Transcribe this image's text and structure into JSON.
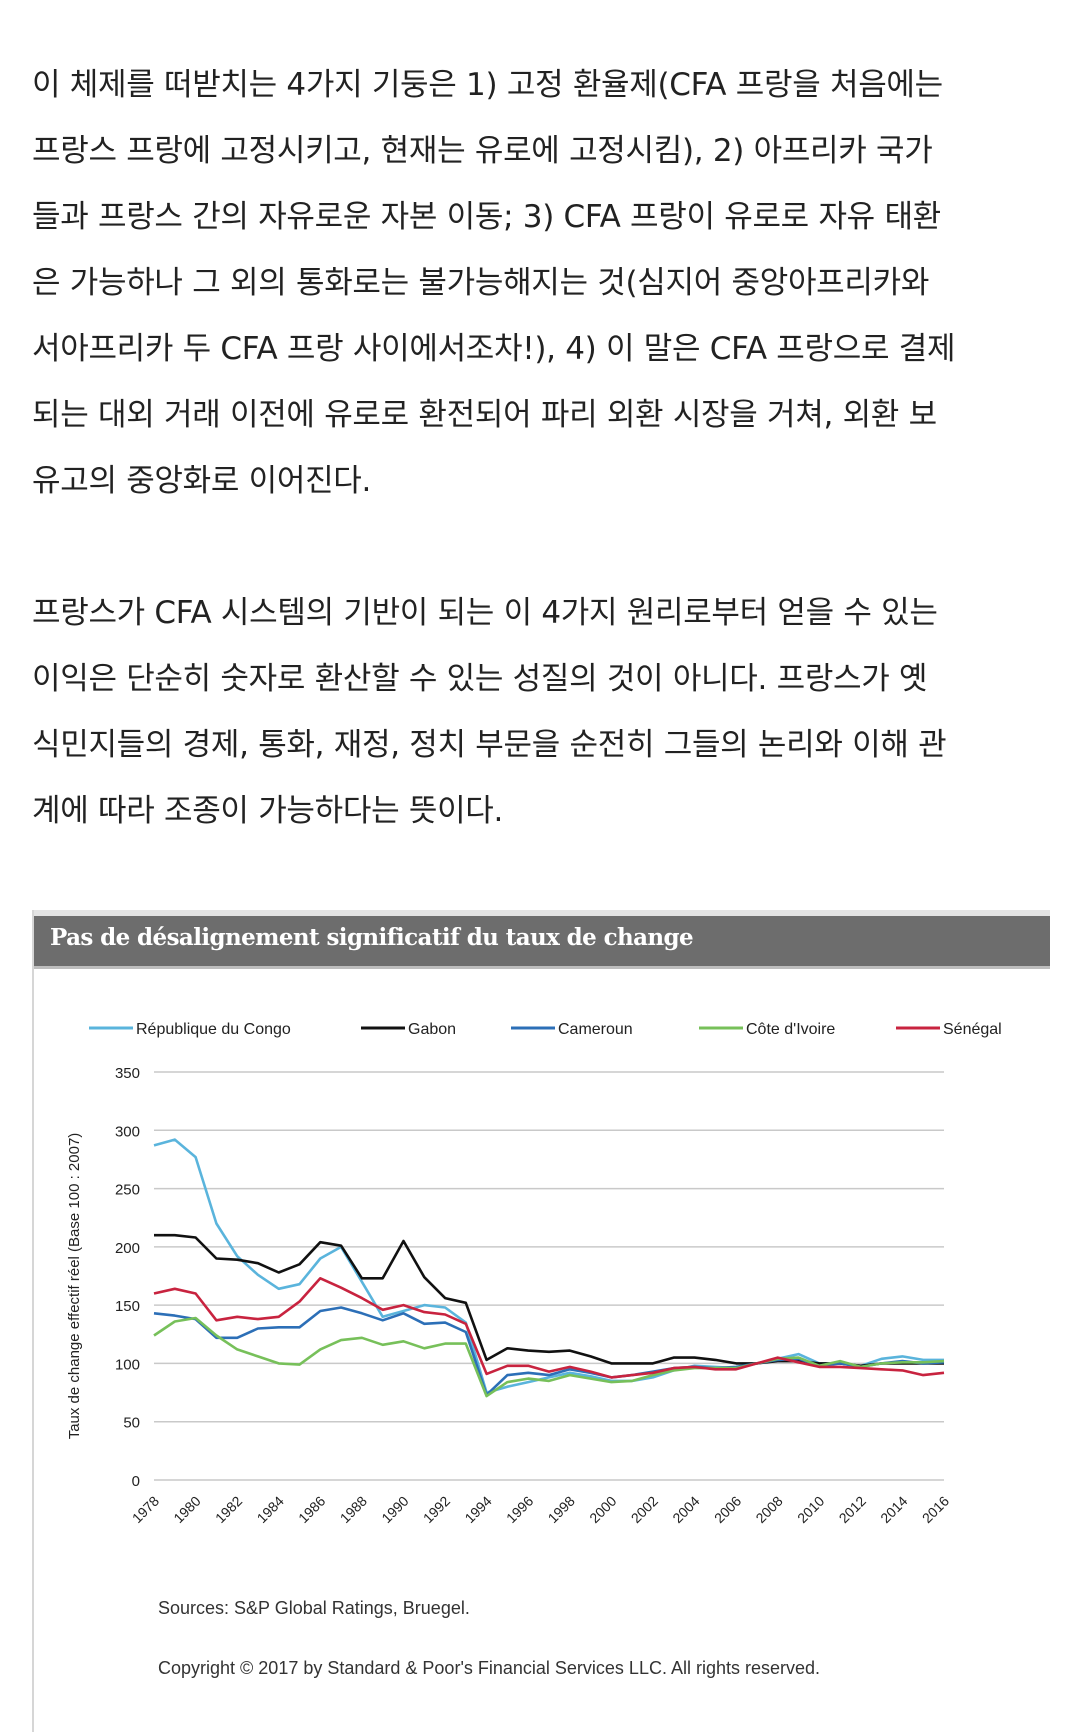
{
  "article": {
    "paragraphs": [
      {
        "lines": [
          "이 체제를 떠받치는 4가지 기둥은 1) 고정 환율제(CFA 프랑을 처음에는",
          "프랑스 프랑에 고정시키고, 현재는 유로에 고정시킴), 2) 아프리카 국가",
          "들과 프랑스 간의 자유로운 자본 이동; 3) CFA 프랑이 유로로 자유 태환",
          "은 가능하나 그 외의 통화로는 불가능해지는 것(심지어 중앙아프리카와",
          "서아프리카 두 CFA 프랑 사이에서조차!), 4) 이 말은 CFA 프랑으로 결제",
          "되는 대외 거래 이전에 유로로 환전되어 파리 외환 시장을 거쳐, 외환 보",
          "유고의 중앙화로 이어진다."
        ]
      },
      {
        "lines": [
          "프랑스가 CFA 시스템의 기반이 되는 이 4가지 원리로부터 얻을 수 있는",
          "이익은 단순히 숫자로 환산할 수 있는 성질의 것이 아니다. 프랑스가 옛",
          "식민지들의 경제, 통화, 재정, 정치 부문을 순전히 그들의 논리와 이해 관",
          "계에 따라 조종이 가능하다는 뜻이다."
        ]
      }
    ]
  },
  "figure": {
    "source": "Sources: S&P Global Ratings, Bruegel.",
    "copyright": "Copyright © 2017 by Standard & Poor's Financial Services LLC. All rights reserved."
  },
  "chart_data": {
    "type": "line",
    "title": "Pas de désalignement significatif du taux de change",
    "xlabel": "",
    "ylabel": "Taux de change effectif réel (Base 100 : 2007)",
    "ylim": [
      0,
      350
    ],
    "yticks": [
      0,
      50,
      100,
      150,
      200,
      250,
      300,
      350
    ],
    "xlim": [
      1978,
      2016
    ],
    "xticks": [
      1978,
      1980,
      1982,
      1984,
      1986,
      1988,
      1990,
      1992,
      1994,
      1996,
      1998,
      2000,
      2002,
      2004,
      2006,
      2008,
      2010,
      2012,
      2014,
      2016
    ],
    "grid": "horizontal",
    "legend_position": "top",
    "x": [
      1978,
      1979,
      1980,
      1981,
      1982,
      1983,
      1984,
      1985,
      1986,
      1987,
      1988,
      1989,
      1990,
      1991,
      1992,
      1993,
      1994,
      1995,
      1996,
      1997,
      1998,
      1999,
      2000,
      2001,
      2002,
      2003,
      2004,
      2005,
      2006,
      2007,
      2008,
      2009,
      2010,
      2011,
      2012,
      2013,
      2014,
      2015,
      2016
    ],
    "series": [
      {
        "name": "République du Congo",
        "color": "#5ab4dc",
        "values": [
          287,
          292,
          277,
          220,
          192,
          176,
          164,
          168,
          190,
          200,
          170,
          140,
          145,
          150,
          148,
          135,
          75,
          80,
          84,
          88,
          92,
          89,
          85,
          85,
          88,
          94,
          98,
          97,
          96,
          100,
          104,
          108,
          100,
          100,
          98,
          104,
          106,
          103,
          103
        ]
      },
      {
        "name": "Gabon",
        "color": "#111111",
        "values": [
          210,
          210,
          208,
          190,
          189,
          186,
          178,
          185,
          204,
          201,
          173,
          173,
          205,
          174,
          156,
          152,
          103,
          113,
          111,
          110,
          111,
          106,
          100,
          100,
          100,
          105,
          105,
          103,
          100,
          100,
          102,
          102,
          100,
          100,
          98,
          100,
          100,
          100,
          100
        ]
      },
      {
        "name": "Cameroun",
        "color": "#2c6fb7",
        "values": [
          143,
          141,
          138,
          122,
          122,
          130,
          131,
          131,
          145,
          148,
          143,
          137,
          143,
          134,
          135,
          127,
          73,
          90,
          92,
          90,
          95,
          92,
          88,
          90,
          93,
          96,
          97,
          96,
          97,
          100,
          103,
          104,
          98,
          100,
          97,
          100,
          102,
          100,
          101
        ]
      },
      {
        "name": "Côte d'Ivoire",
        "color": "#77c05a",
        "values": [
          124,
          136,
          139,
          124,
          112,
          106,
          100,
          99,
          112,
          120,
          122,
          116,
          119,
          113,
          117,
          117,
          72,
          84,
          87,
          85,
          90,
          87,
          84,
          85,
          90,
          94,
          96,
          96,
          96,
          100,
          104,
          105,
          98,
          102,
          97,
          100,
          101,
          101,
          102
        ]
      },
      {
        "name": "Sénégal",
        "color": "#c8233f",
        "values": [
          160,
          164,
          160,
          137,
          140,
          138,
          140,
          153,
          173,
          165,
          156,
          146,
          150,
          144,
          142,
          134,
          91,
          98,
          98,
          93,
          97,
          93,
          88,
          90,
          92,
          96,
          97,
          95,
          95,
          100,
          105,
          101,
          97,
          97,
          96,
          95,
          94,
          90,
          92
        ]
      }
    ]
  }
}
